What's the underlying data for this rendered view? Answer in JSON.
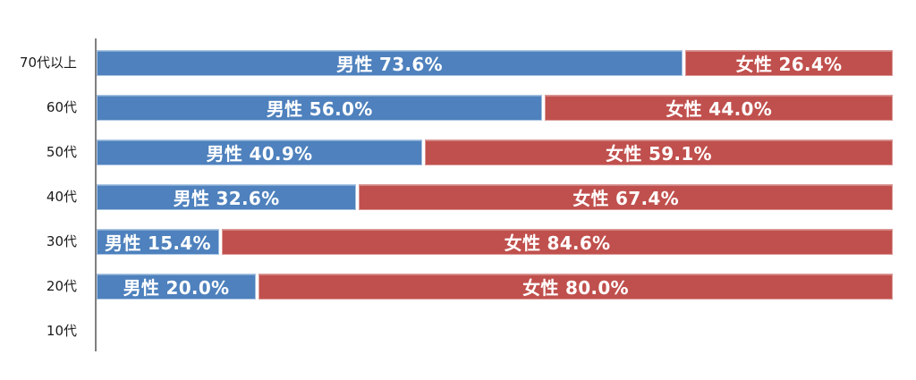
{
  "page": {
    "background": "#FFFFFF"
  },
  "chart_data": {
    "type": "bar",
    "orientation": "horizontal",
    "stacked": true,
    "title": "",
    "xlabel": "",
    "ylabel": "",
    "xlim": [
      0,
      100
    ],
    "value_unit": "%",
    "grid": "off",
    "legend_position": "none",
    "label_format": "{series} {value}%",
    "categories": [
      "70代以上",
      "60代",
      "50代",
      "40代",
      "30代",
      "20代",
      "10代"
    ],
    "series": [
      {
        "name": "男性",
        "color": "#4E81BD",
        "border_color": "#A9C4E3",
        "values": [
          73.6,
          56.0,
          40.9,
          32.6,
          15.4,
          20.0,
          null
        ]
      },
      {
        "name": "女性",
        "color": "#C0504D",
        "border_color": "#D99795",
        "values": [
          26.4,
          44.0,
          59.1,
          67.4,
          84.6,
          80.0,
          null
        ]
      }
    ],
    "segment_labels": [
      [
        "男性 73.6%",
        "女性 26.4%"
      ],
      [
        "男性 56.0%",
        "女性 44.0%"
      ],
      [
        "男性 40.9%",
        "女性 59.1%"
      ],
      [
        "男性 32.6%",
        "女性 67.4%"
      ],
      [
        "男性 15.4%",
        "女性 84.6%"
      ],
      [
        "男性 20.0%",
        "女性 80.0%"
      ],
      [
        "",
        ""
      ]
    ],
    "axis_color": "#7F7F7F",
    "category_label_color": "#1A1A1A",
    "bar_label_color": "#FFFFFF"
  }
}
